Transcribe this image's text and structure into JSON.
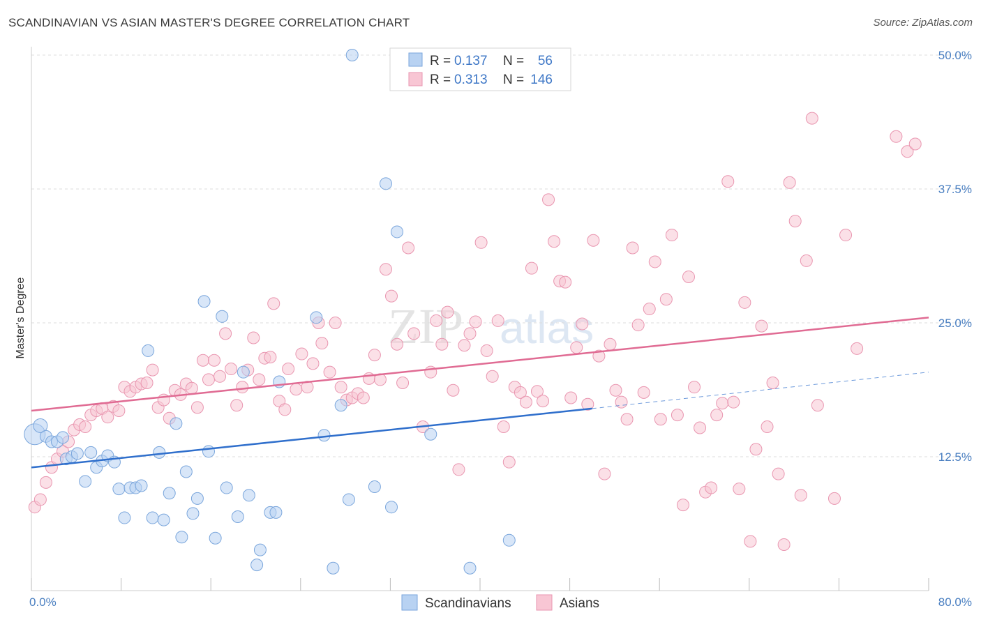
{
  "title": "SCANDINAVIAN VS ASIAN MASTER'S DEGREE CORRELATION CHART",
  "source": "Source: ZipAtlas.com",
  "watermark": {
    "zip": "ZIP",
    "atlas": "atlas"
  },
  "colors": {
    "blue_fill": "#b8d2f2",
    "blue_stroke": "#7aa6dc",
    "blue_line": "#2f6fcc",
    "pink_fill": "#f8c6d4",
    "pink_stroke": "#e996b0",
    "pink_line": "#e06b93",
    "grid": "#dddddd",
    "tick_label": "#4a7fc1"
  },
  "legend": {
    "rows": [
      {
        "r_label": "R =",
        "r_value": "0.137",
        "n_label": "N =",
        "n_value": "56"
      },
      {
        "r_label": "R =",
        "r_value": "0.313",
        "n_label": "N =",
        "n_value": "146"
      }
    ]
  },
  "chart_data": {
    "type": "scatter",
    "title": "SCANDINAVIAN VS ASIAN MASTER'S DEGREE CORRELATION CHART",
    "xlabel": "",
    "ylabel": "Master's Degree",
    "xlim": [
      0,
      80
    ],
    "ylim": [
      0,
      50
    ],
    "x_tick_labels": [
      "0.0%",
      "80.0%"
    ],
    "y_ticks": [
      12.5,
      25.0,
      37.5,
      50.0
    ],
    "y_tick_labels": [
      "12.5%",
      "25.0%",
      "37.5%",
      "50.0%"
    ],
    "grid": true,
    "legend_position": "top-center",
    "series": [
      {
        "name": "Scandinavians",
        "r": 0.137,
        "n": 56,
        "trend": {
          "x0": 0,
          "y0": 11.5,
          "x1": 50,
          "y1": 17.0,
          "dash_to_x": 80,
          "dash_to_y": 20.4
        },
        "points": [
          [
            0.3,
            14.6
          ],
          [
            0.8,
            15.4
          ],
          [
            1.3,
            14.4
          ],
          [
            1.8,
            13.9
          ],
          [
            2.3,
            13.9
          ],
          [
            2.8,
            14.3
          ],
          [
            3.1,
            12.3
          ],
          [
            3.6,
            12.5
          ],
          [
            4.1,
            12.8
          ],
          [
            4.8,
            10.2
          ],
          [
            5.3,
            12.9
          ],
          [
            5.8,
            11.5
          ],
          [
            6.3,
            12.1
          ],
          [
            6.8,
            12.6
          ],
          [
            7.4,
            12.0
          ],
          [
            7.8,
            9.5
          ],
          [
            8.3,
            6.8
          ],
          [
            8.8,
            9.6
          ],
          [
            9.3,
            9.6
          ],
          [
            9.8,
            9.8
          ],
          [
            10.4,
            22.4
          ],
          [
            10.8,
            6.8
          ],
          [
            11.4,
            12.9
          ],
          [
            11.8,
            6.6
          ],
          [
            12.3,
            9.1
          ],
          [
            12.9,
            15.6
          ],
          [
            13.4,
            5.0
          ],
          [
            13.8,
            11.1
          ],
          [
            14.4,
            7.2
          ],
          [
            14.8,
            8.6
          ],
          [
            15.4,
            27.0
          ],
          [
            15.8,
            13.0
          ],
          [
            16.4,
            4.9
          ],
          [
            17.0,
            25.6
          ],
          [
            17.4,
            9.6
          ],
          [
            18.4,
            6.9
          ],
          [
            18.9,
            20.4
          ],
          [
            19.4,
            8.9
          ],
          [
            20.1,
            2.4
          ],
          [
            20.4,
            3.8
          ],
          [
            21.3,
            7.3
          ],
          [
            21.8,
            7.3
          ],
          [
            22.1,
            19.5
          ],
          [
            25.4,
            25.5
          ],
          [
            26.1,
            14.5
          ],
          [
            26.9,
            2.1
          ],
          [
            27.6,
            17.3
          ],
          [
            28.3,
            8.5
          ],
          [
            28.6,
            50.0
          ],
          [
            30.6,
            9.7
          ],
          [
            31.6,
            38.0
          ],
          [
            32.1,
            7.8
          ],
          [
            32.6,
            33.5
          ],
          [
            35.6,
            14.6
          ],
          [
            39.1,
            2.1
          ],
          [
            42.6,
            4.7
          ]
        ]
      },
      {
        "name": "Asians",
        "r": 0.313,
        "n": 146,
        "trend": {
          "x0": 0,
          "y0": 16.8,
          "x1": 80,
          "y1": 25.5
        },
        "points": [
          [
            0.3,
            7.8
          ],
          [
            0.8,
            8.5
          ],
          [
            1.3,
            10.1
          ],
          [
            1.8,
            11.5
          ],
          [
            2.3,
            12.3
          ],
          [
            2.8,
            13.0
          ],
          [
            3.3,
            13.9
          ],
          [
            3.8,
            15.0
          ],
          [
            4.3,
            15.5
          ],
          [
            4.8,
            15.3
          ],
          [
            5.3,
            16.4
          ],
          [
            5.8,
            16.8
          ],
          [
            6.3,
            17.0
          ],
          [
            6.8,
            16.2
          ],
          [
            7.3,
            17.2
          ],
          [
            7.8,
            16.8
          ],
          [
            8.3,
            19.0
          ],
          [
            8.8,
            18.6
          ],
          [
            9.3,
            19.0
          ],
          [
            9.8,
            19.3
          ],
          [
            10.3,
            19.4
          ],
          [
            10.8,
            20.6
          ],
          [
            11.3,
            17.1
          ],
          [
            11.8,
            17.8
          ],
          [
            12.3,
            16.1
          ],
          [
            12.8,
            18.7
          ],
          [
            13.3,
            18.3
          ],
          [
            13.8,
            19.3
          ],
          [
            14.3,
            18.9
          ],
          [
            14.8,
            17.1
          ],
          [
            15.3,
            21.5
          ],
          [
            15.8,
            19.7
          ],
          [
            16.3,
            21.5
          ],
          [
            16.8,
            20.0
          ],
          [
            17.3,
            24.0
          ],
          [
            17.8,
            20.7
          ],
          [
            18.3,
            17.3
          ],
          [
            18.8,
            19.0
          ],
          [
            19.3,
            20.6
          ],
          [
            19.8,
            23.6
          ],
          [
            20.3,
            19.7
          ],
          [
            20.8,
            21.7
          ],
          [
            21.3,
            21.8
          ],
          [
            21.6,
            26.8
          ],
          [
            22.1,
            17.7
          ],
          [
            22.6,
            16.9
          ],
          [
            22.9,
            20.7
          ],
          [
            23.6,
            18.8
          ],
          [
            24.1,
            22.1
          ],
          [
            24.6,
            19.0
          ],
          [
            25.1,
            21.2
          ],
          [
            25.6,
            25.0
          ],
          [
            25.9,
            23.1
          ],
          [
            26.6,
            20.4
          ],
          [
            27.1,
            25.0
          ],
          [
            27.6,
            19.0
          ],
          [
            28.1,
            17.8
          ],
          [
            28.6,
            18.0
          ],
          [
            29.1,
            18.4
          ],
          [
            29.6,
            18.0
          ],
          [
            30.1,
            19.8
          ],
          [
            30.6,
            22.0
          ],
          [
            31.1,
            19.7
          ],
          [
            31.6,
            30.0
          ],
          [
            32.1,
            27.5
          ],
          [
            32.6,
            23.0
          ],
          [
            33.1,
            19.4
          ],
          [
            33.6,
            32.0
          ],
          [
            34.1,
            24.0
          ],
          [
            34.9,
            15.3
          ],
          [
            35.6,
            20.4
          ],
          [
            36.1,
            25.2
          ],
          [
            36.6,
            23.0
          ],
          [
            37.1,
            26.0
          ],
          [
            37.6,
            18.7
          ],
          [
            38.1,
            11.3
          ],
          [
            38.6,
            22.9
          ],
          [
            39.1,
            24.0
          ],
          [
            39.6,
            25.1
          ],
          [
            40.1,
            32.5
          ],
          [
            40.6,
            22.4
          ],
          [
            41.1,
            20.0
          ],
          [
            41.6,
            25.2
          ],
          [
            42.1,
            15.3
          ],
          [
            42.6,
            12.0
          ],
          [
            43.1,
            19.0
          ],
          [
            43.6,
            18.5
          ],
          [
            44.1,
            17.6
          ],
          [
            44.6,
            30.1
          ],
          [
            45.1,
            18.6
          ],
          [
            45.6,
            17.7
          ],
          [
            46.1,
            36.5
          ],
          [
            46.6,
            32.6
          ],
          [
            47.1,
            28.9
          ],
          [
            47.6,
            28.8
          ],
          [
            48.1,
            18.0
          ],
          [
            48.6,
            22.7
          ],
          [
            49.1,
            24.9
          ],
          [
            49.6,
            17.4
          ],
          [
            50.1,
            32.7
          ],
          [
            50.6,
            21.9
          ],
          [
            51.1,
            10.9
          ],
          [
            51.6,
            23.0
          ],
          [
            52.1,
            18.7
          ],
          [
            52.6,
            17.6
          ],
          [
            53.1,
            16.0
          ],
          [
            53.6,
            32.0
          ],
          [
            54.1,
            24.8
          ],
          [
            54.6,
            18.5
          ],
          [
            55.1,
            26.3
          ],
          [
            55.6,
            30.7
          ],
          [
            56.1,
            16.0
          ],
          [
            56.6,
            27.2
          ],
          [
            57.1,
            33.2
          ],
          [
            57.6,
            16.4
          ],
          [
            58.1,
            8.0
          ],
          [
            58.6,
            29.3
          ],
          [
            59.1,
            19.0
          ],
          [
            59.6,
            15.2
          ],
          [
            60.1,
            9.2
          ],
          [
            60.6,
            9.6
          ],
          [
            61.1,
            16.4
          ],
          [
            61.6,
            17.5
          ],
          [
            62.1,
            38.2
          ],
          [
            62.6,
            17.6
          ],
          [
            63.1,
            9.5
          ],
          [
            63.6,
            26.9
          ],
          [
            64.1,
            4.6
          ],
          [
            64.6,
            13.2
          ],
          [
            65.1,
            24.7
          ],
          [
            65.6,
            15.3
          ],
          [
            66.1,
            19.4
          ],
          [
            66.6,
            10.9
          ],
          [
            67.1,
            4.3
          ],
          [
            67.6,
            38.1
          ],
          [
            68.1,
            34.5
          ],
          [
            68.6,
            8.9
          ],
          [
            69.1,
            30.8
          ],
          [
            69.6,
            44.1
          ],
          [
            70.1,
            17.3
          ],
          [
            71.6,
            8.6
          ],
          [
            72.6,
            33.2
          ],
          [
            73.6,
            22.6
          ],
          [
            77.1,
            42.4
          ],
          [
            78.1,
            41.0
          ],
          [
            78.8,
            41.7
          ]
        ]
      }
    ]
  },
  "bottom_legend": [
    "Scandinavians",
    "Asians"
  ]
}
